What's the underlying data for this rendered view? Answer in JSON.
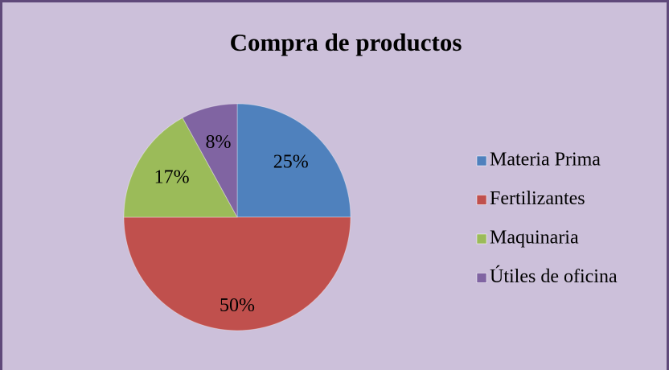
{
  "chart_data": {
    "type": "pie",
    "title": "Compra de productos",
    "categories": [
      "Materia Prima",
      "Fertilizantes",
      "Maquinaria",
      "Útiles de oficina"
    ],
    "values": [
      25,
      50,
      17,
      8
    ],
    "value_labels": [
      "25%",
      "50%",
      "17%",
      "8%"
    ],
    "colors": [
      "#4f81bd",
      "#c0504d",
      "#9bbb59",
      "#8064a2"
    ],
    "legend": "right"
  }
}
